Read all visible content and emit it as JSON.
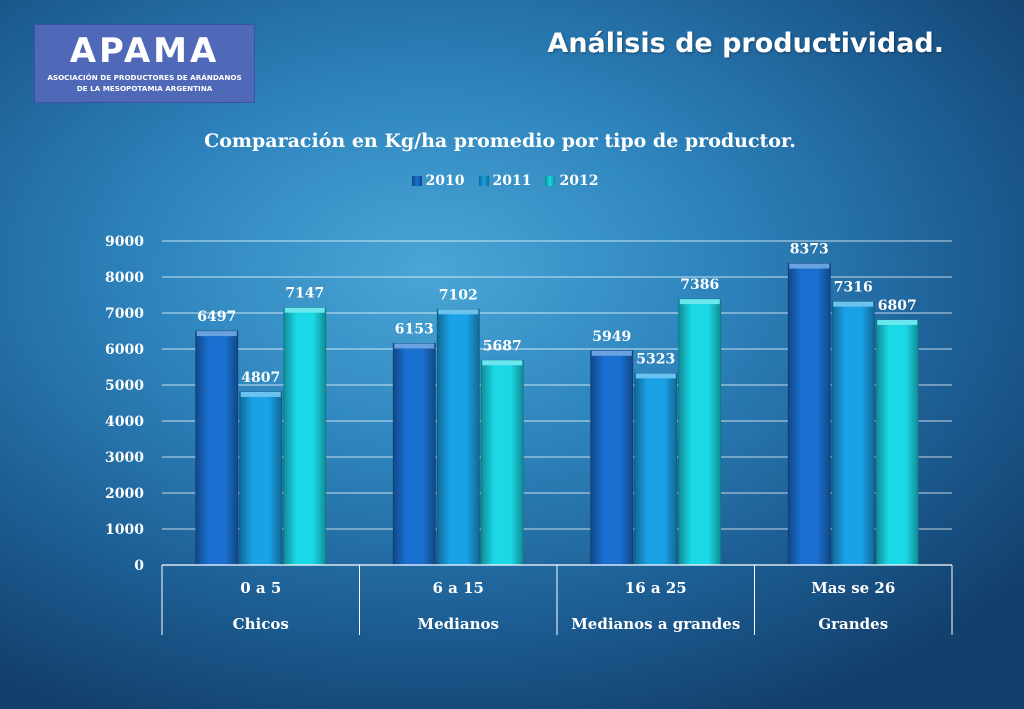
{
  "logo": {
    "name": "APAMA",
    "line1": "ASOCIACIÓN DE PRODUCTORES DE ARÁNDANOS",
    "line2": "DE LA MESOPOTAMIA ARGENTINA"
  },
  "slide_title": "Análisis de productividad.",
  "chart_data": {
    "type": "bar",
    "title": "Comparación en Kg/ha promedio por tipo de productor.",
    "categories": [
      "0 a 5",
      "6 a 15",
      "16 a 25",
      "Mas se 26"
    ],
    "category_groups": [
      "Chicos",
      "Medianos",
      "Medianos a grandes",
      "Grandes"
    ],
    "series": [
      {
        "name": "2010",
        "color": "#1a6fd0",
        "values": [
          6497,
          6153,
          5949,
          8373
        ]
      },
      {
        "name": "2011",
        "color": "#1aa1e6",
        "values": [
          4807,
          7102,
          5323,
          7316
        ]
      },
      {
        "name": "2012",
        "color": "#1ad8e6",
        "values": [
          7147,
          5687,
          7386,
          6807
        ]
      }
    ],
    "ylim": [
      0,
      9000
    ],
    "yticks": [
      0,
      1000,
      2000,
      3000,
      4000,
      5000,
      6000,
      7000,
      8000,
      9000
    ],
    "grid": true,
    "legend_position": "top"
  }
}
